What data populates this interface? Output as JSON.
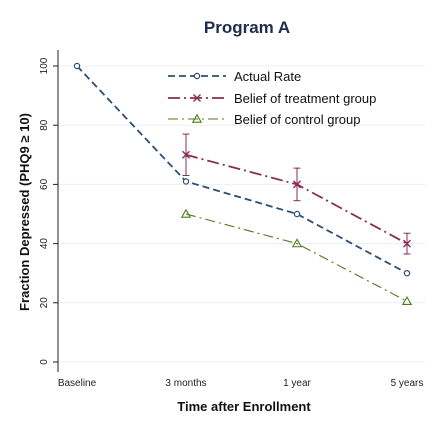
{
  "chart_data": {
    "type": "line",
    "title": "Program A",
    "xlabel": "Time after Enrollment",
    "ylabel": "Fraction Depressed (PHQ9 ≥ 10)",
    "categories": [
      "Baseline",
      "3 months",
      "1 year",
      "5 years"
    ],
    "ylim": [
      0,
      100
    ],
    "yticks": [
      "0",
      "20",
      "40",
      "60",
      "80",
      "100"
    ],
    "grid": "horizontal",
    "legend_position": "top-right",
    "series": [
      {
        "name": "Actual Rate",
        "values": [
          100,
          61,
          50,
          30
        ],
        "color": "#2d4e73",
        "marker": "circle",
        "line": "dashed"
      },
      {
        "name": "Belief of treatment group",
        "values": [
          null,
          70,
          60,
          40
        ],
        "errors": [
          null,
          7,
          5.5,
          3.5
        ],
        "color": "#8b2d52",
        "marker": "x",
        "line": "longdash-dot"
      },
      {
        "name": "Belief of control group",
        "values": [
          null,
          50,
          40,
          20.5
        ],
        "color": "#4f7a1c",
        "marker": "triangle",
        "line": "dash-dot"
      }
    ]
  }
}
